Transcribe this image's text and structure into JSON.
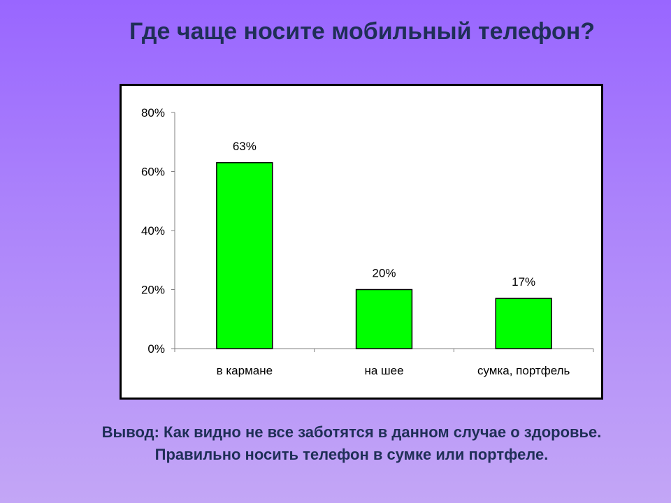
{
  "slide": {
    "title": "Где чаще носите мобильный телефон?",
    "conclusion_line1": "Вывод: Как видно не все заботятся в данном случае о здоровье.",
    "conclusion_line2": "Правильно носить телефон в сумке или портфеле."
  },
  "chart_data": {
    "type": "bar",
    "categories": [
      "в кармане",
      "на шее",
      "сумка, портфель"
    ],
    "values": [
      63,
      20,
      17
    ],
    "data_labels": [
      "63%",
      "20%",
      "17%"
    ],
    "ylim": [
      0,
      80
    ],
    "yticks": [
      0,
      20,
      40,
      60,
      80
    ],
    "ytick_labels": [
      "0%",
      "20%",
      "40%",
      "60%",
      "80%"
    ],
    "grid": false,
    "legend": false,
    "bar_color": "#00ff00",
    "bar_edge_color": "#000000"
  }
}
